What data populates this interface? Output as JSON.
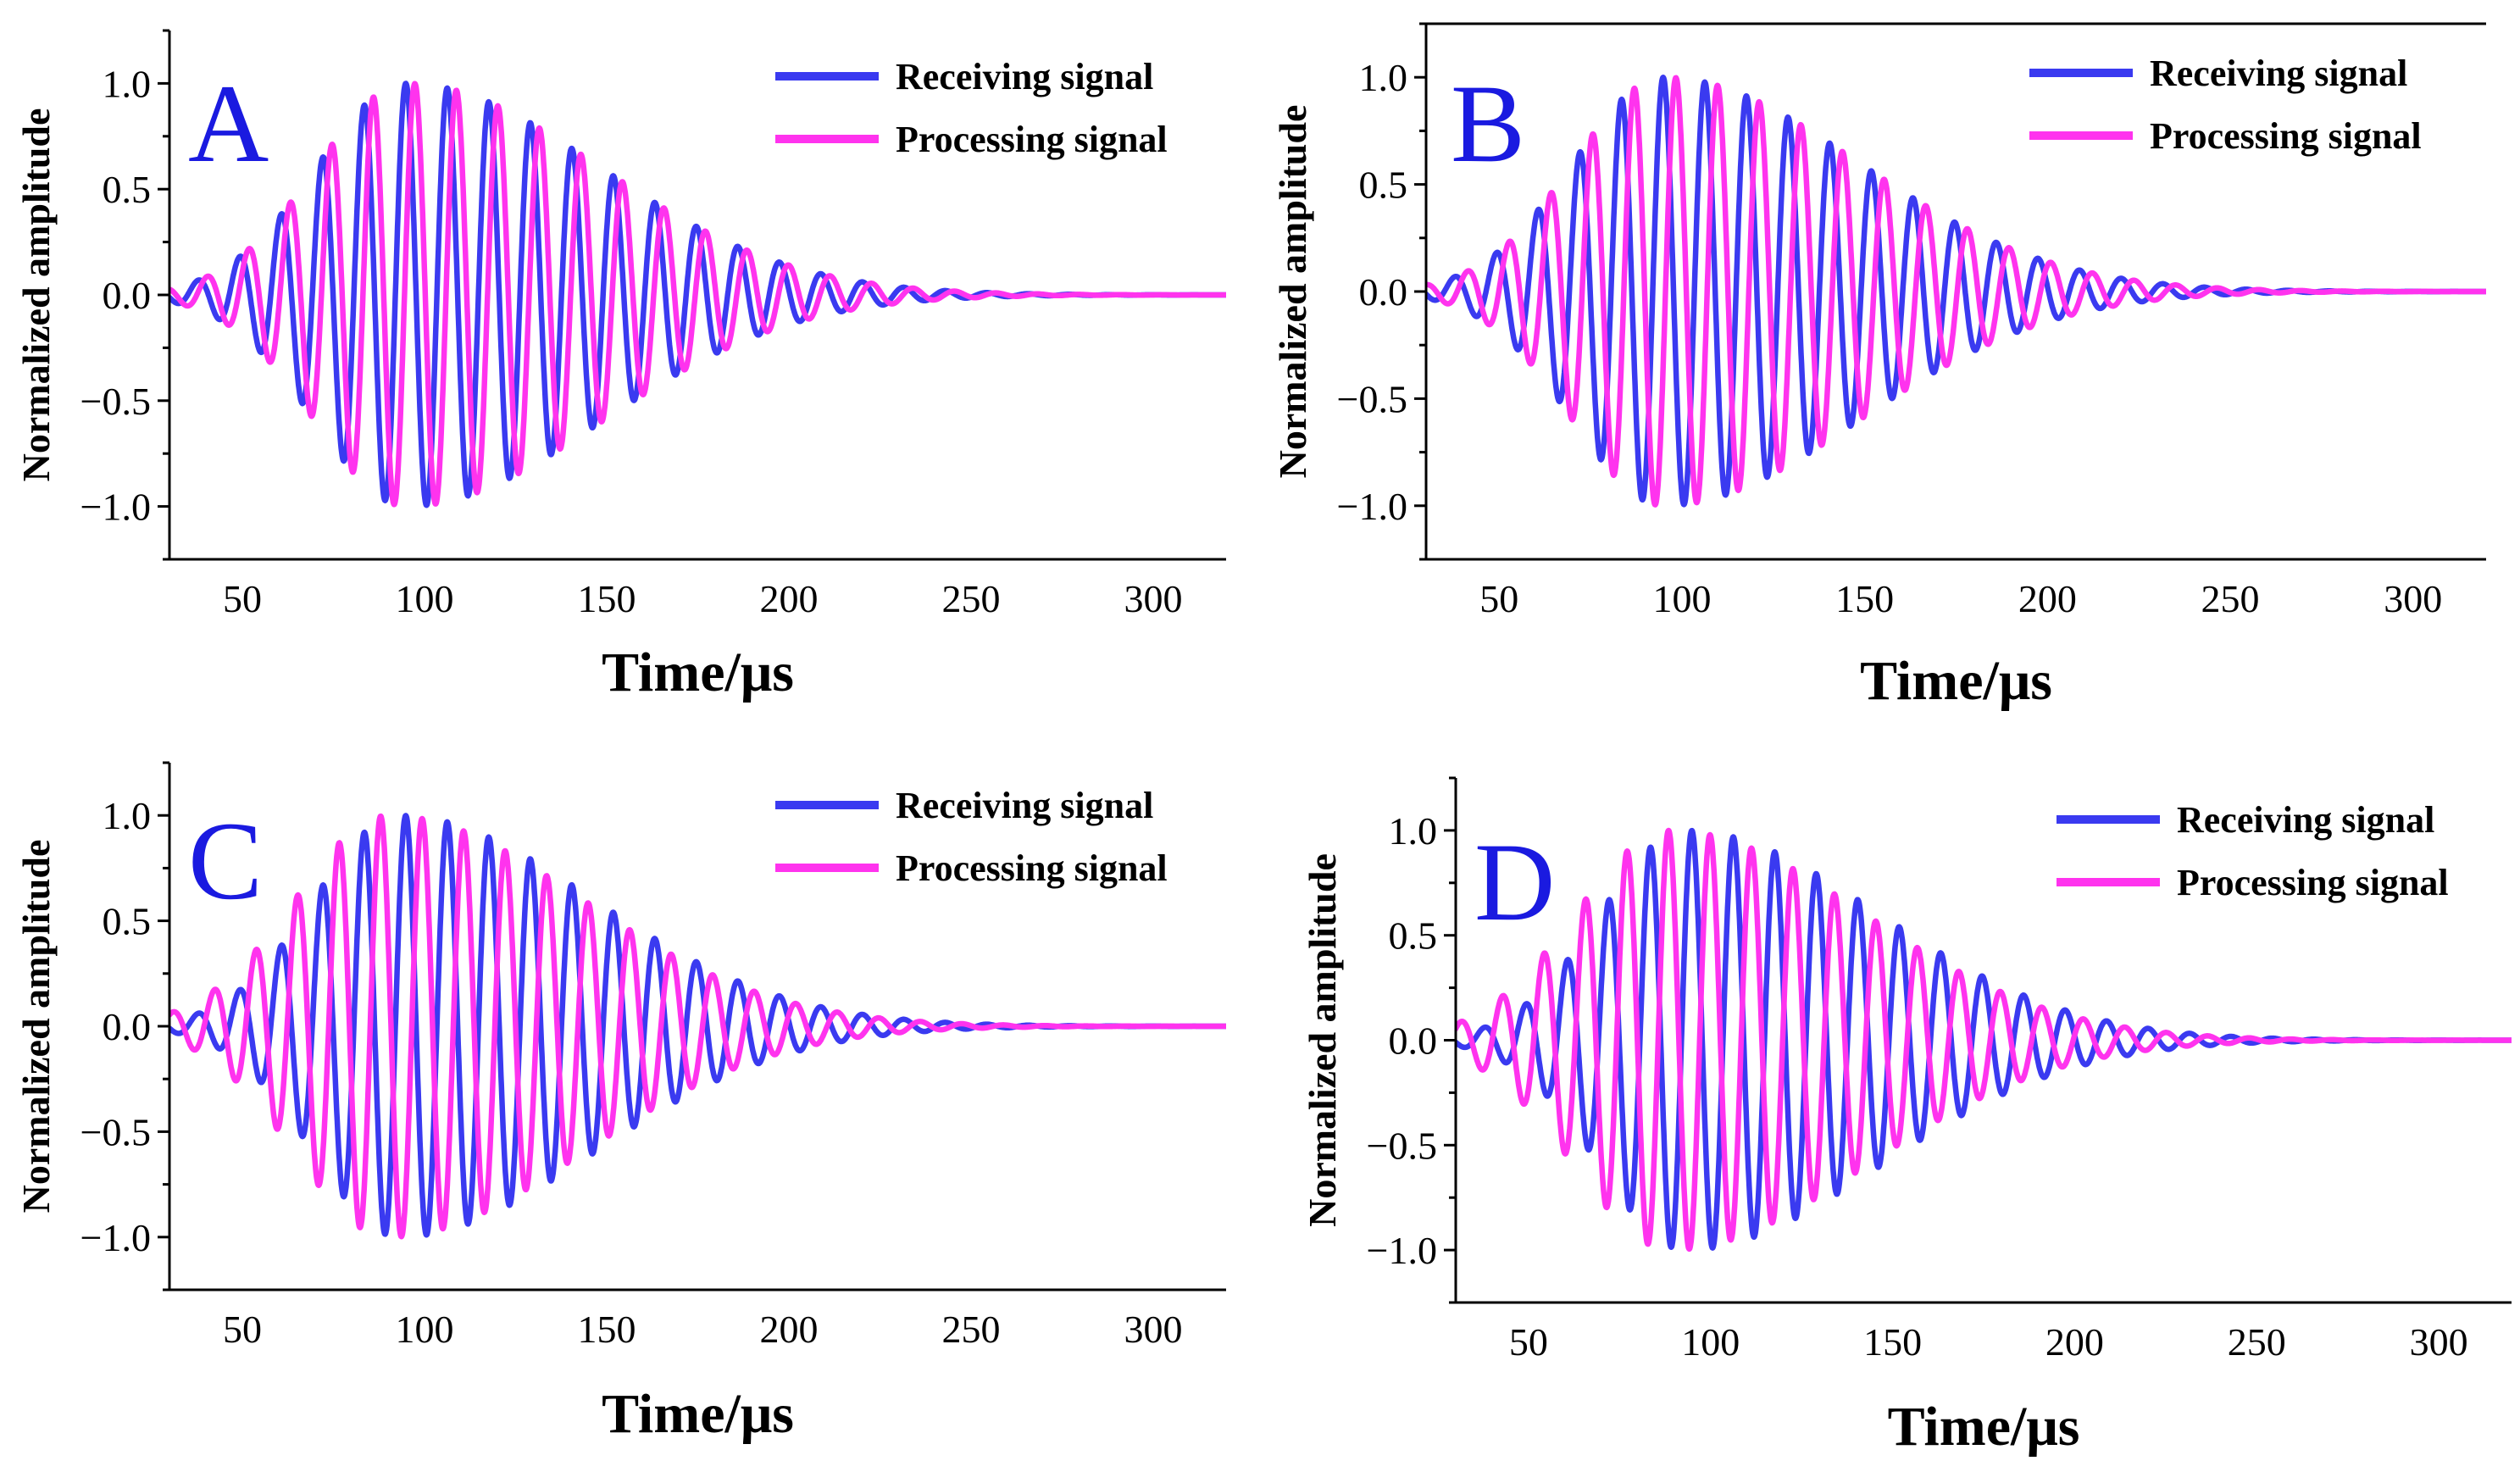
{
  "colors": {
    "receiving": "#3a3af0",
    "processing": "#ff33ee",
    "panel_letter": "#1a1ae0",
    "axis": "#000000"
  },
  "chart_data": [
    {
      "type": "line",
      "panel_label": "A",
      "xlabel": "Time/μs",
      "ylabel": "Normalized amplitude",
      "xlim": [
        30,
        320
      ],
      "ylim": [
        -1.25,
        1.25
      ],
      "xticks": [
        50,
        100,
        150,
        200,
        250,
        300
      ],
      "yticks": [
        -1.0,
        -0.5,
        0.0,
        0.5,
        1.0
      ],
      "ytick_labels": [
        "−1.0",
        "−0.5",
        "0.0",
        "0.5",
        "1.0"
      ],
      "legend": [
        "Receiving signal",
        "Processing signal"
      ],
      "legend_position": "top-right",
      "series": [
        {
          "name": "Receiving signal",
          "waveform": {
            "start": 30,
            "end": 320,
            "period": 11.4,
            "phase_time": 35,
            "peak_time": 95,
            "rise_width": 35,
            "decay_width": 75,
            "amplitude": 1.0
          }
        },
        {
          "name": "Processing signal",
          "waveform": {
            "start": 30,
            "end": 320,
            "period": 11.4,
            "phase_time": 37.5,
            "peak_time": 95,
            "rise_width": 35,
            "decay_width": 75,
            "amplitude": 1.0
          }
        }
      ]
    },
    {
      "type": "line",
      "panel_label": "B",
      "xlabel": "Time/μs",
      "ylabel": "Normalized amplitude",
      "xlim": [
        30,
        320
      ],
      "ylim": [
        -1.25,
        1.25
      ],
      "xticks": [
        50,
        100,
        150,
        200,
        250,
        300
      ],
      "yticks": [
        -1.0,
        -0.5,
        0.0,
        0.5,
        1.0
      ],
      "ytick_labels": [
        "−1.0",
        "−0.5",
        "0.0",
        "0.5",
        "1.0"
      ],
      "legend": [
        "Receiving signal",
        "Processing signal"
      ],
      "legend_position": "top-right",
      "series": [
        {
          "name": "Receiving signal",
          "waveform": {
            "start": 30,
            "end": 320,
            "period": 11.4,
            "phase_time": 35,
            "peak_time": 95,
            "rise_width": 35,
            "decay_width": 75,
            "amplitude": 1.0
          }
        },
        {
          "name": "Processing signal",
          "waveform": {
            "start": 30,
            "end": 320,
            "period": 11.4,
            "phase_time": 38.5,
            "peak_time": 95,
            "rise_width": 35,
            "decay_width": 75,
            "amplitude": 1.0
          }
        }
      ]
    },
    {
      "type": "line",
      "panel_label": "C",
      "xlabel": "Time/μs",
      "ylabel": "Normalized amplitude",
      "xlim": [
        30,
        320
      ],
      "ylim": [
        -1.25,
        1.25
      ],
      "xticks": [
        50,
        100,
        150,
        200,
        250,
        300
      ],
      "yticks": [
        -1.0,
        -0.5,
        0.0,
        0.5,
        1.0
      ],
      "ytick_labels": [
        "−1.0",
        "−0.5",
        "0.0",
        "0.5",
        "1.0"
      ],
      "legend": [
        "Receiving signal",
        "Processing signal"
      ],
      "legend_position": "top-right",
      "series": [
        {
          "name": "Receiving signal",
          "waveform": {
            "start": 30,
            "end": 320,
            "period": 11.4,
            "phase_time": 35,
            "peak_time": 93,
            "rise_width": 33,
            "decay_width": 75,
            "amplitude": 1.0
          }
        },
        {
          "name": "Processing signal",
          "waveform": {
            "start": 30,
            "end": 320,
            "period": 11.4,
            "phase_time": 39.5,
            "peak_time": 90,
            "rise_width": 36,
            "decay_width": 75,
            "amplitude": 1.0
          }
        }
      ]
    },
    {
      "type": "line",
      "panel_label": "D",
      "xlabel": "Time/μs",
      "ylabel": "Normalized amplitude",
      "xlim": [
        30,
        320
      ],
      "ylim": [
        -1.25,
        1.25
      ],
      "xticks": [
        50,
        100,
        150,
        200,
        250,
        300
      ],
      "yticks": [
        -1.0,
        -0.5,
        0.0,
        0.5,
        1.0
      ],
      "ytick_labels": [
        "−1.0",
        "−0.5",
        "0.0",
        "0.5",
        "1.0"
      ],
      "legend": [
        "Receiving signal",
        "Processing signal"
      ],
      "legend_position": "top-right",
      "series": [
        {
          "name": "Receiving signal",
          "waveform": {
            "start": 30,
            "end": 320,
            "period": 11.4,
            "phase_time": 35,
            "peak_time": 93,
            "rise_width": 33,
            "decay_width": 75,
            "amplitude": 1.0
          }
        },
        {
          "name": "Processing signal",
          "waveform": {
            "start": 30,
            "end": 320,
            "period": 11.4,
            "phase_time": 40,
            "peak_time": 89,
            "rise_width": 37,
            "decay_width": 75,
            "amplitude": 1.0
          }
        }
      ]
    }
  ]
}
